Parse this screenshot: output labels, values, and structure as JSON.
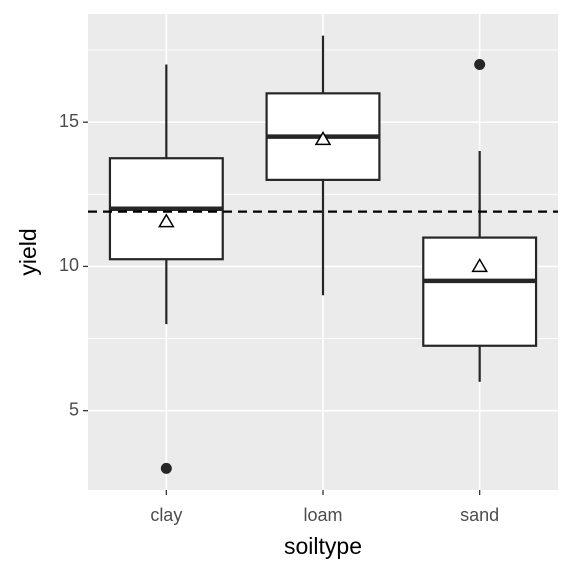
{
  "chart_data": {
    "type": "box",
    "x_label": "soiltype",
    "y_label": "yield",
    "categories": [
      "clay",
      "loam",
      "sand"
    ],
    "boxes": [
      {
        "min": 8,
        "q1": 10.25,
        "median": 12,
        "q3": 13.75,
        "max": 17,
        "mean": 11.55,
        "outliers": [
          3
        ]
      },
      {
        "min": 9,
        "q1": 13,
        "median": 14.5,
        "q3": 16,
        "max": 18,
        "mean": 14.4,
        "outliers": []
      },
      {
        "min": 6,
        "q1": 7.25,
        "median": 9.5,
        "q3": 11,
        "max": 14,
        "mean": 10,
        "outliers": [
          17
        ]
      }
    ],
    "hline": 11.9,
    "ylim": [
      2.25,
      18.75
    ],
    "yticks": [
      5,
      10,
      15
    ],
    "minor_yticks": [
      7.5,
      12.5,
      17.5
    ],
    "grid": true
  }
}
